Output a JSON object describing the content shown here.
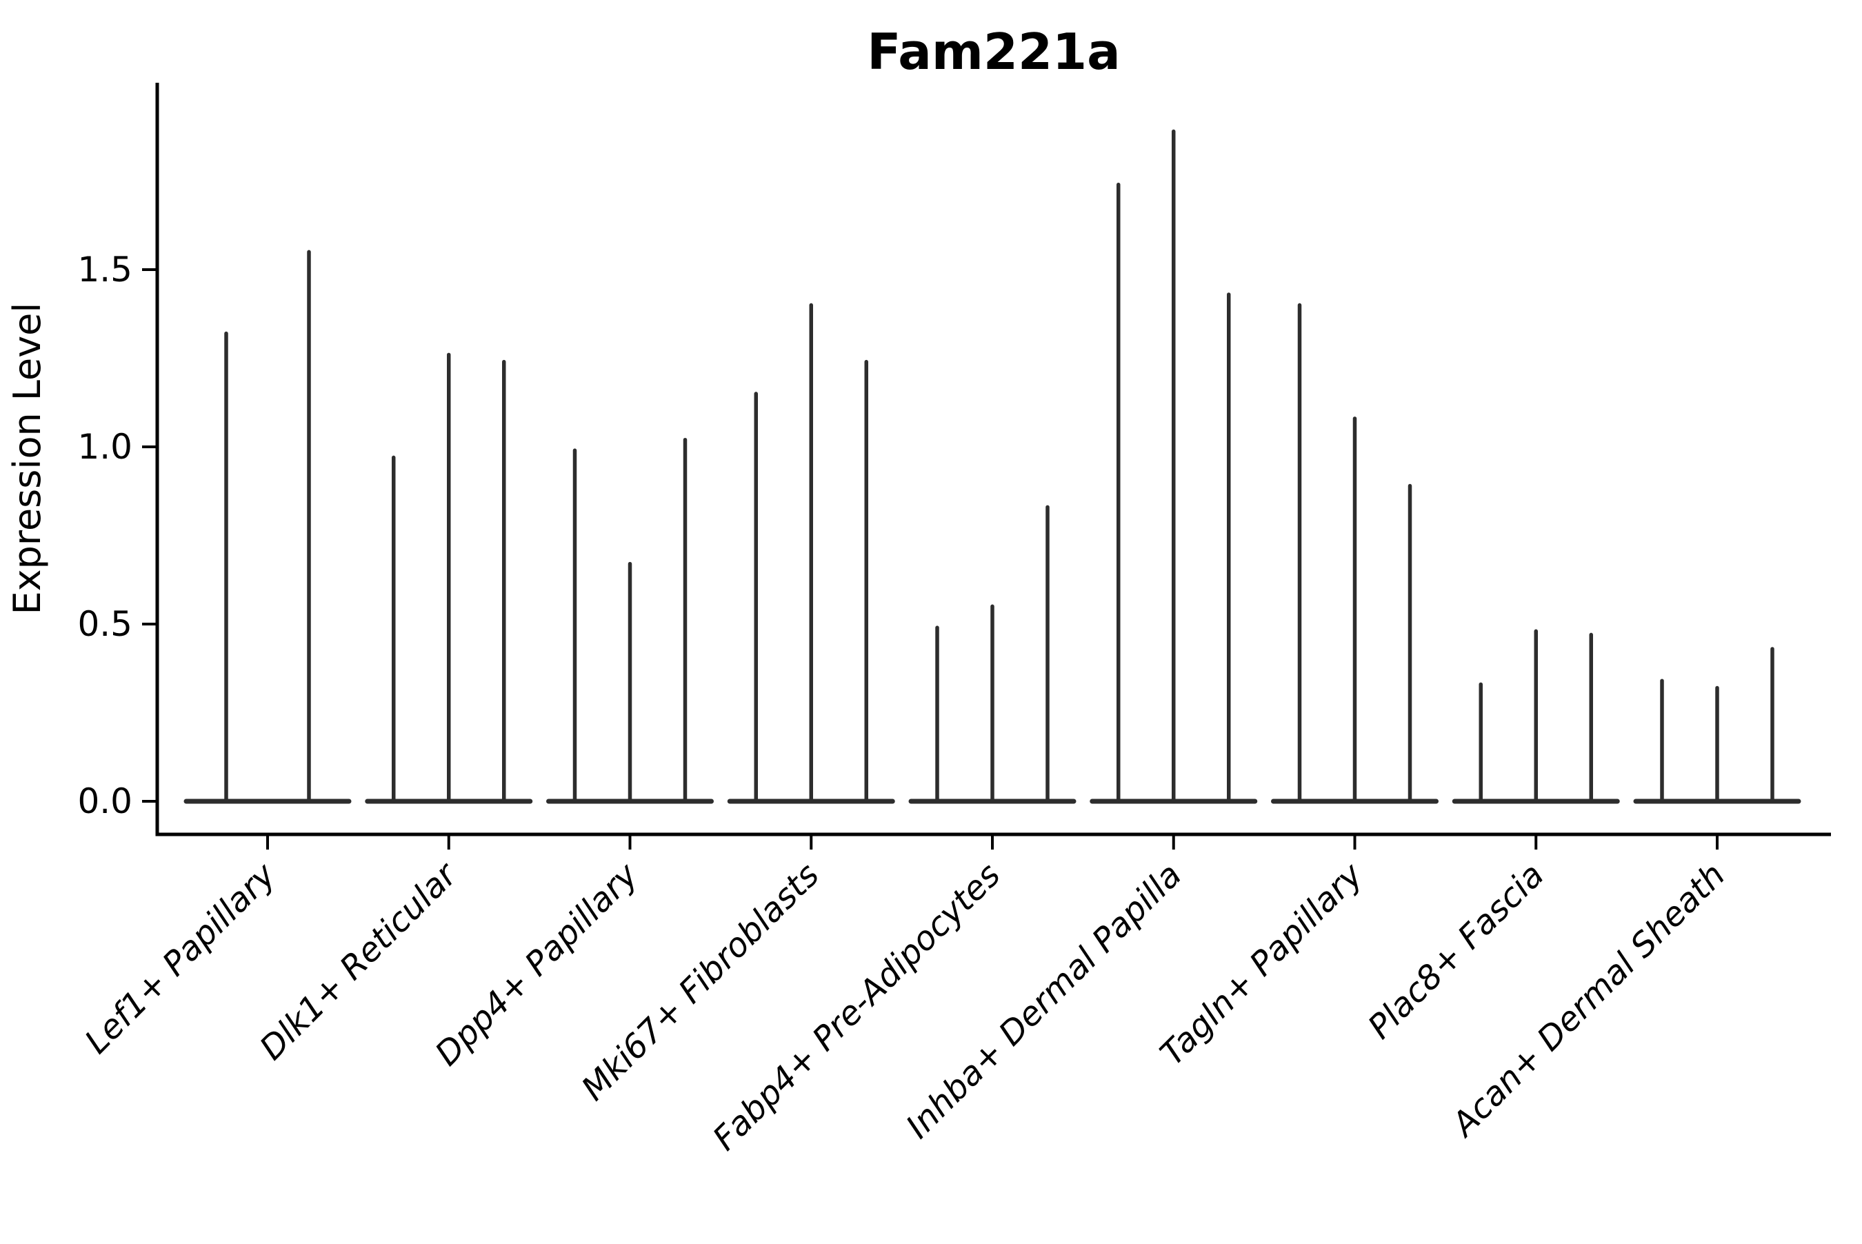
{
  "figure": {
    "title": "Fam221a",
    "background_color": "#ffffff",
    "ink_color": "#000000",
    "violin_color": "#2d2d2d"
  },
  "chart_data": {
    "type": "violin",
    "title": "Fam221a",
    "xlabel": "",
    "ylabel": "Expression Level",
    "ylim": [
      -0.09,
      2.03
    ],
    "yticks": {
      "values": [
        0.0,
        0.5,
        1.0,
        1.5
      ],
      "labels": [
        "0.0",
        "0.5",
        "1.0",
        "1.5"
      ]
    },
    "grid": false,
    "legend": "none",
    "xtick_label_rotation_deg": 45,
    "xtick_label_style": "italic",
    "categories": [
      "Lef1+ Papillary",
      "Dlk1+ Reticular",
      "Dpp4+ Papillary",
      "Mki67+ Fibroblasts",
      "Fabp4+ Pre-Adipocytes",
      "Inhba+ Dermal Papilla",
      "Tagln+ Papillary",
      "Plac8+ Fascia",
      "Acan+ Dermal Sheath"
    ],
    "description": "Each category shows thin violin spikes rising from a flat base at 0; values are the maximum expression level reached by each spike (left to right within group).",
    "violin_max_per_group": [
      [
        1.32,
        1.55
      ],
      [
        0.97,
        1.26,
        1.24
      ],
      [
        0.99,
        0.67,
        1.02
      ],
      [
        1.15,
        1.4,
        1.24
      ],
      [
        0.49,
        0.55,
        0.83
      ],
      [
        1.74,
        1.89,
        1.43
      ],
      [
        1.4,
        1.08,
        0.89
      ],
      [
        0.33,
        0.48,
        0.47
      ],
      [
        0.34,
        0.32,
        0.43
      ]
    ]
  }
}
